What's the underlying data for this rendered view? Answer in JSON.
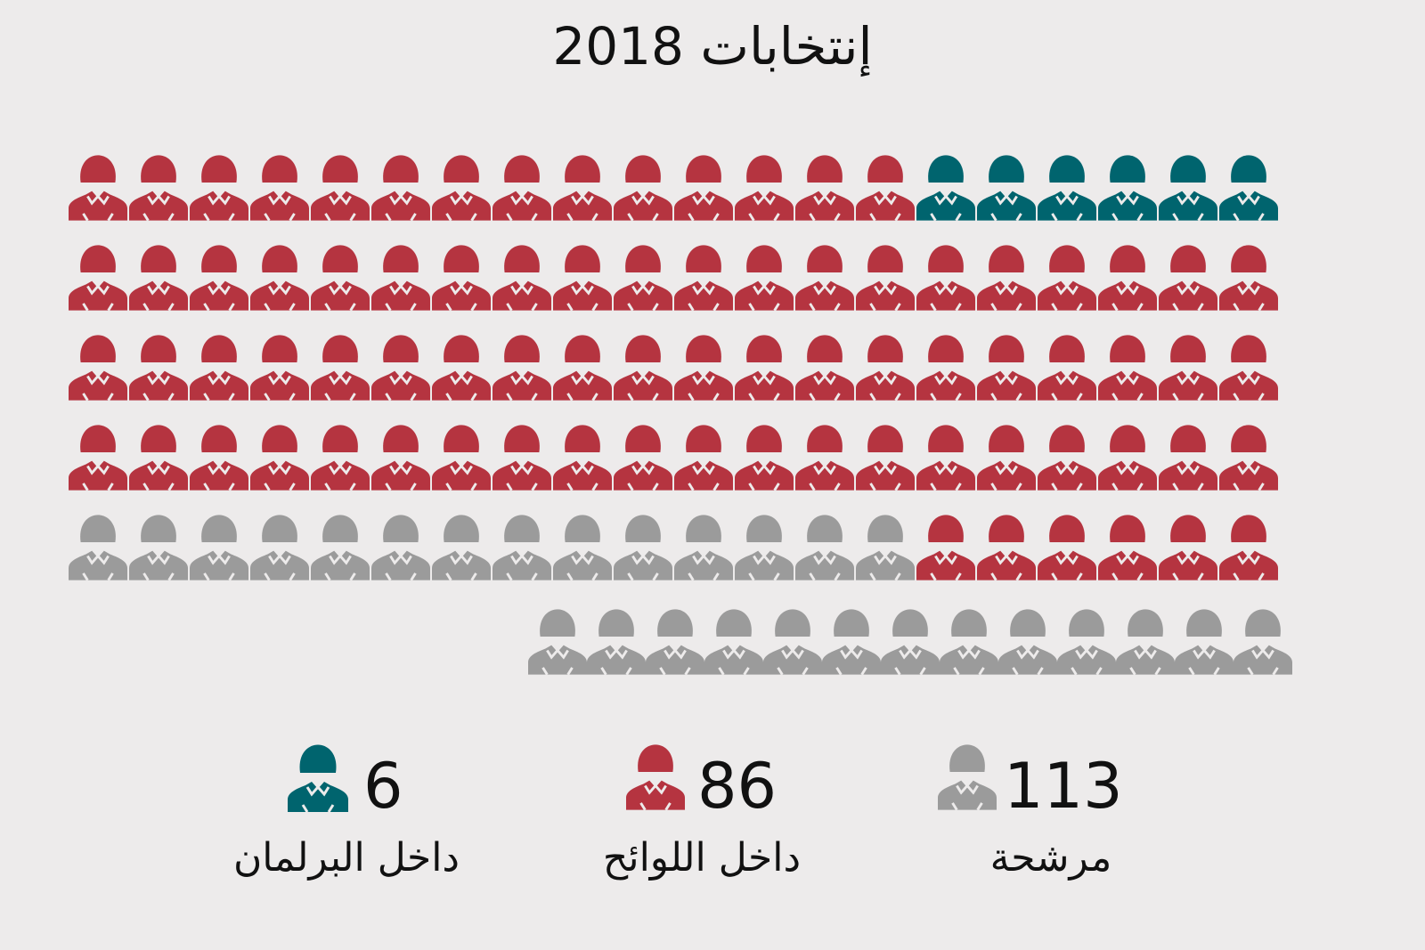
{
  "chart_data": {
    "type": "pictogram",
    "title": "إنتخابات 2018",
    "series": [
      {
        "key": "parliament",
        "label": "داخل البرلمان",
        "value": 6,
        "color": "#00646e"
      },
      {
        "key": "lists",
        "label": "داخل اللوائح",
        "value": 86,
        "color": "#b53440"
      },
      {
        "key": "candidates",
        "label": "مرشحة",
        "value": 113,
        "color": "#9b9b9b"
      }
    ]
  }
}
